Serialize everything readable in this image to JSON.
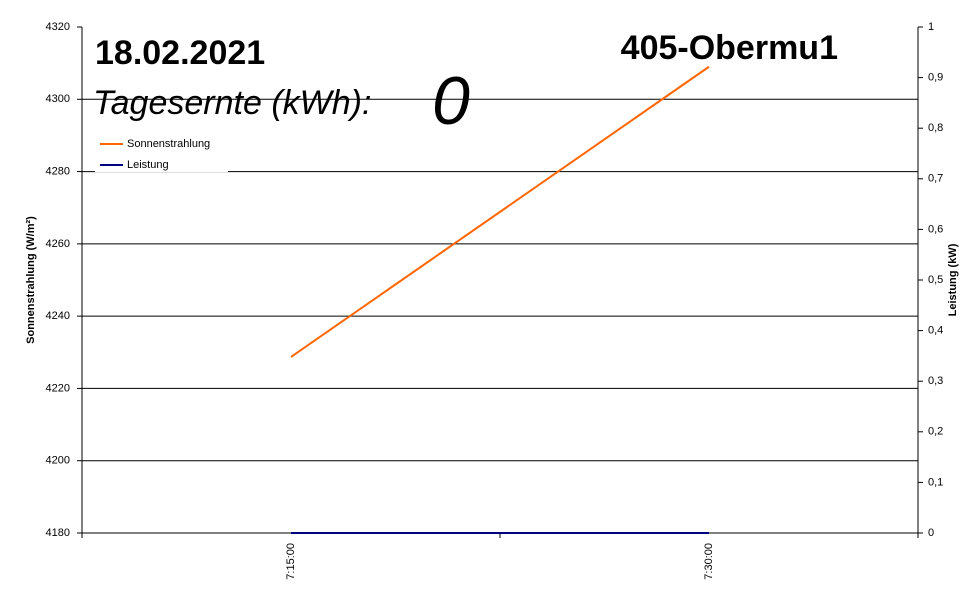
{
  "chart_data": {
    "type": "line",
    "date": "18.02.2021",
    "title": "405-Obermu1",
    "yield_label": "Tagesernte (kWh):",
    "yield_value": 0,
    "categories": [
      "7:15:00",
      "7:30:00"
    ],
    "ylabel": "Sonnenstrahlung (W/m²)",
    "y2label": "Leistung (kW)",
    "ylim": [
      4180,
      4320
    ],
    "yticks": [
      4180,
      4200,
      4220,
      4240,
      4260,
      4280,
      4300,
      4320
    ],
    "y2lim": [
      0,
      1
    ],
    "y2ticks": [
      0,
      {
        "value": 0.1,
        "label": "0,1"
      },
      {
        "value": 0.2,
        "label": "0,2"
      },
      {
        "value": 0.3,
        "label": "0,3"
      },
      {
        "value": 0.4,
        "label": "0,4"
      },
      {
        "value": 0.5,
        "label": "0,5"
      },
      {
        "value": 0.6,
        "label": "0,6"
      },
      {
        "value": 0.7,
        "label": "0,7"
      },
      {
        "value": 0.8,
        "label": "0,8"
      },
      {
        "value": 0.9,
        "label": "0,9"
      },
      1
    ],
    "grid": true,
    "legend": "upper left",
    "series": [
      {
        "name": "Sonnenstrahlung",
        "color": "#ff6600",
        "values": [
          4228.7,
          4309
        ]
      },
      {
        "name": "Leistung",
        "color": "#000080",
        "values": [
          0,
          0
        ],
        "axis": "y2"
      }
    ]
  }
}
